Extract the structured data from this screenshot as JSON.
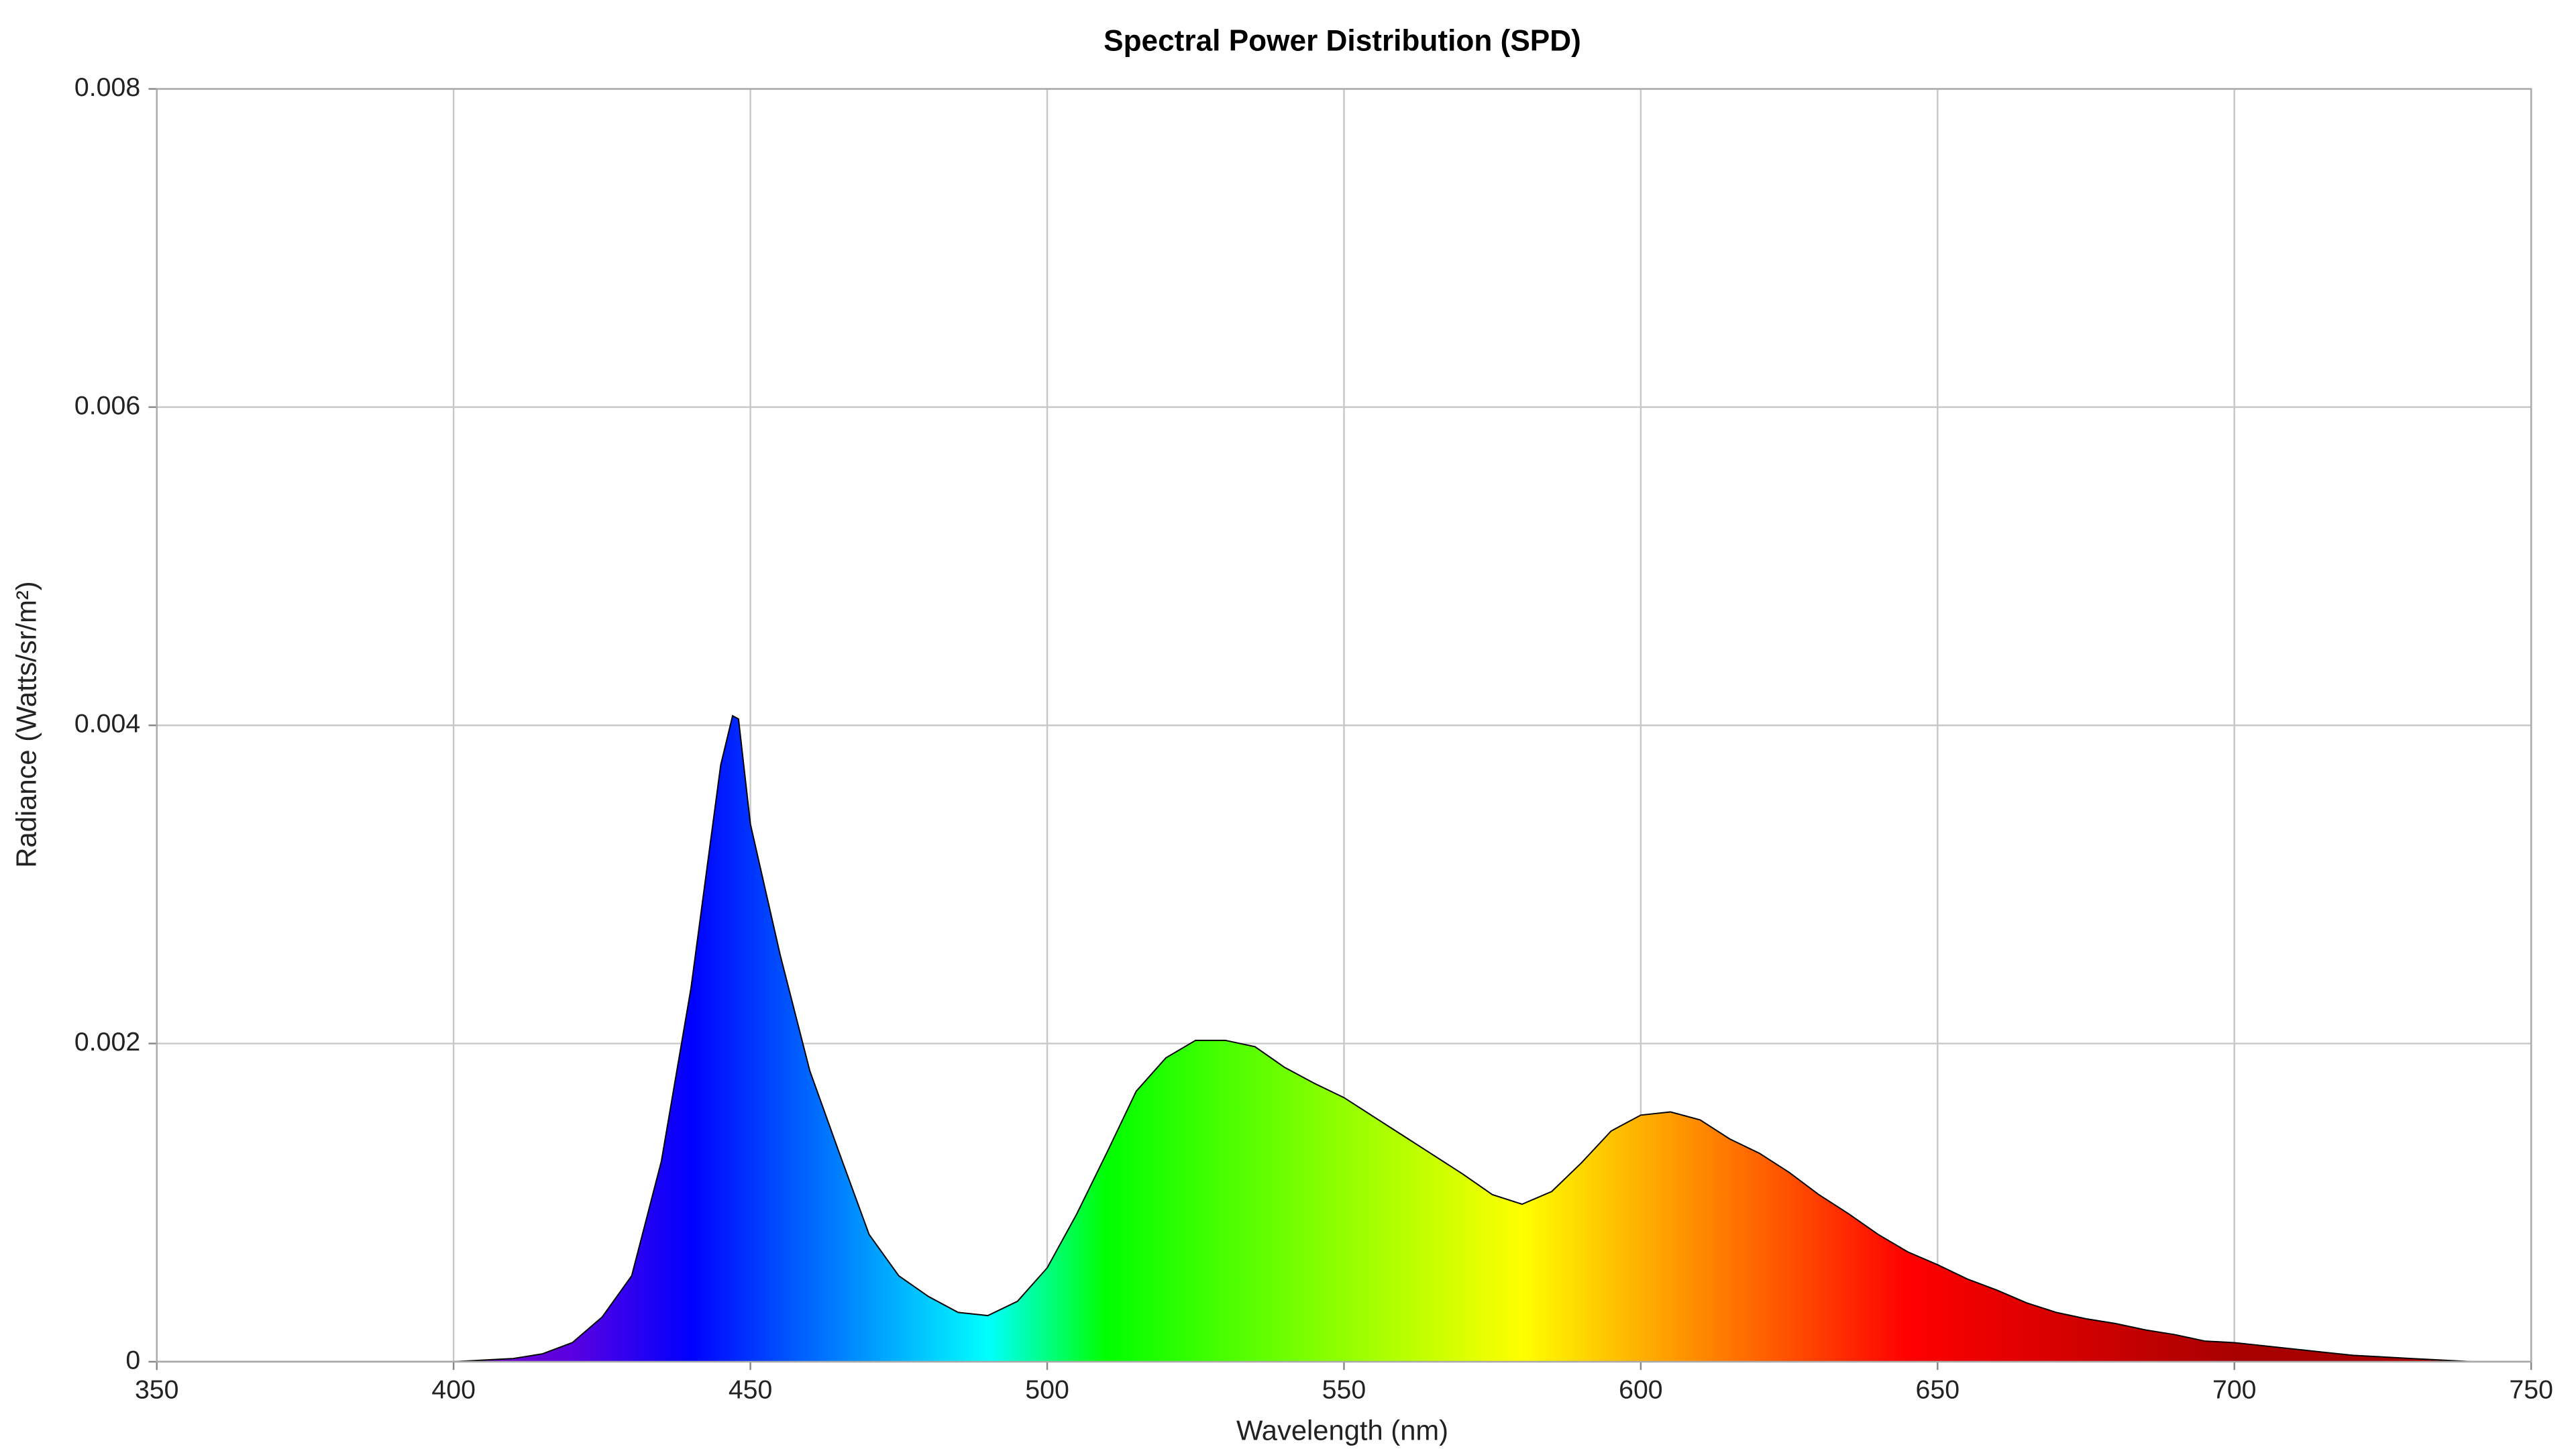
{
  "chart_data": {
    "type": "area",
    "title": "Spectral Power Distribution (SPD)",
    "x_label": "Wavelength (nm)",
    "y_label": "Radiance (Watts/sr/m²)",
    "x": [
      350,
      355,
      360,
      365,
      370,
      375,
      380,
      385,
      390,
      395,
      400,
      405,
      410,
      415,
      420,
      425,
      430,
      435,
      440,
      445,
      447,
      448,
      450,
      455,
      460,
      465,
      470,
      475,
      480,
      485,
      490,
      495,
      500,
      505,
      510,
      515,
      520,
      525,
      530,
      535,
      540,
      545,
      550,
      555,
      560,
      565,
      570,
      575,
      580,
      585,
      590,
      595,
      600,
      605,
      610,
      615,
      620,
      625,
      630,
      635,
      640,
      645,
      650,
      655,
      660,
      665,
      670,
      675,
      680,
      685,
      690,
      695,
      700,
      705,
      710,
      715,
      720,
      725,
      730,
      735,
      740,
      745,
      750
    ],
    "values": [
      0,
      0,
      0,
      0,
      0,
      0,
      0,
      0,
      0,
      0,
      0,
      1e-05,
      2e-05,
      5e-05,
      0.00012,
      0.00028,
      0.00054,
      0.00126,
      0.00235,
      0.00375,
      0.00406,
      0.00404,
      0.00338,
      0.00256,
      0.00183,
      0.00131,
      0.0008,
      0.00054,
      0.00041,
      0.00031,
      0.00029,
      0.00038,
      0.00059,
      0.00093,
      0.00131,
      0.0017,
      0.00191,
      0.00202,
      0.00202,
      0.00198,
      0.00185,
      0.00175,
      0.00166,
      0.00154,
      0.00142,
      0.0013,
      0.00118,
      0.00105,
      0.00099,
      0.00107,
      0.00125,
      0.00145,
      0.00155,
      0.00157,
      0.00152,
      0.0014,
      0.00131,
      0.00119,
      0.00105,
      0.00093,
      0.0008,
      0.00069,
      0.00061,
      0.00052,
      0.00045,
      0.00037,
      0.00031,
      0.00027,
      0.00024,
      0.0002,
      0.00017,
      0.00013,
      0.00012,
      0.0001,
      8e-05,
      6e-05,
      4e-05,
      3e-05,
      2e-05,
      1e-05,
      0,
      0,
      0
    ],
    "fill_gradient": [
      {
        "x": 400,
        "color": "#7a00c8"
      },
      {
        "x": 420,
        "color": "#5a00e0"
      },
      {
        "x": 440,
        "color": "#0000ff"
      },
      {
        "x": 465,
        "color": "#0080ff"
      },
      {
        "x": 490,
        "color": "#00ffff"
      },
      {
        "x": 510,
        "color": "#00ff00"
      },
      {
        "x": 545,
        "color": "#80ff00"
      },
      {
        "x": 580,
        "color": "#ffff00"
      },
      {
        "x": 600,
        "color": "#ffb000"
      },
      {
        "x": 625,
        "color": "#ff5000"
      },
      {
        "x": 645,
        "color": "#ff0000"
      },
      {
        "x": 700,
        "color": "#a80000"
      }
    ],
    "line_color": "#000000",
    "xlim": [
      350,
      750
    ],
    "ylim": [
      0,
      0.008
    ],
    "xticks": [
      350,
      400,
      450,
      500,
      550,
      600,
      650,
      700,
      750
    ],
    "yticks": [
      0,
      0.002,
      0.004,
      0.006,
      0.008
    ],
    "grid": true
  }
}
